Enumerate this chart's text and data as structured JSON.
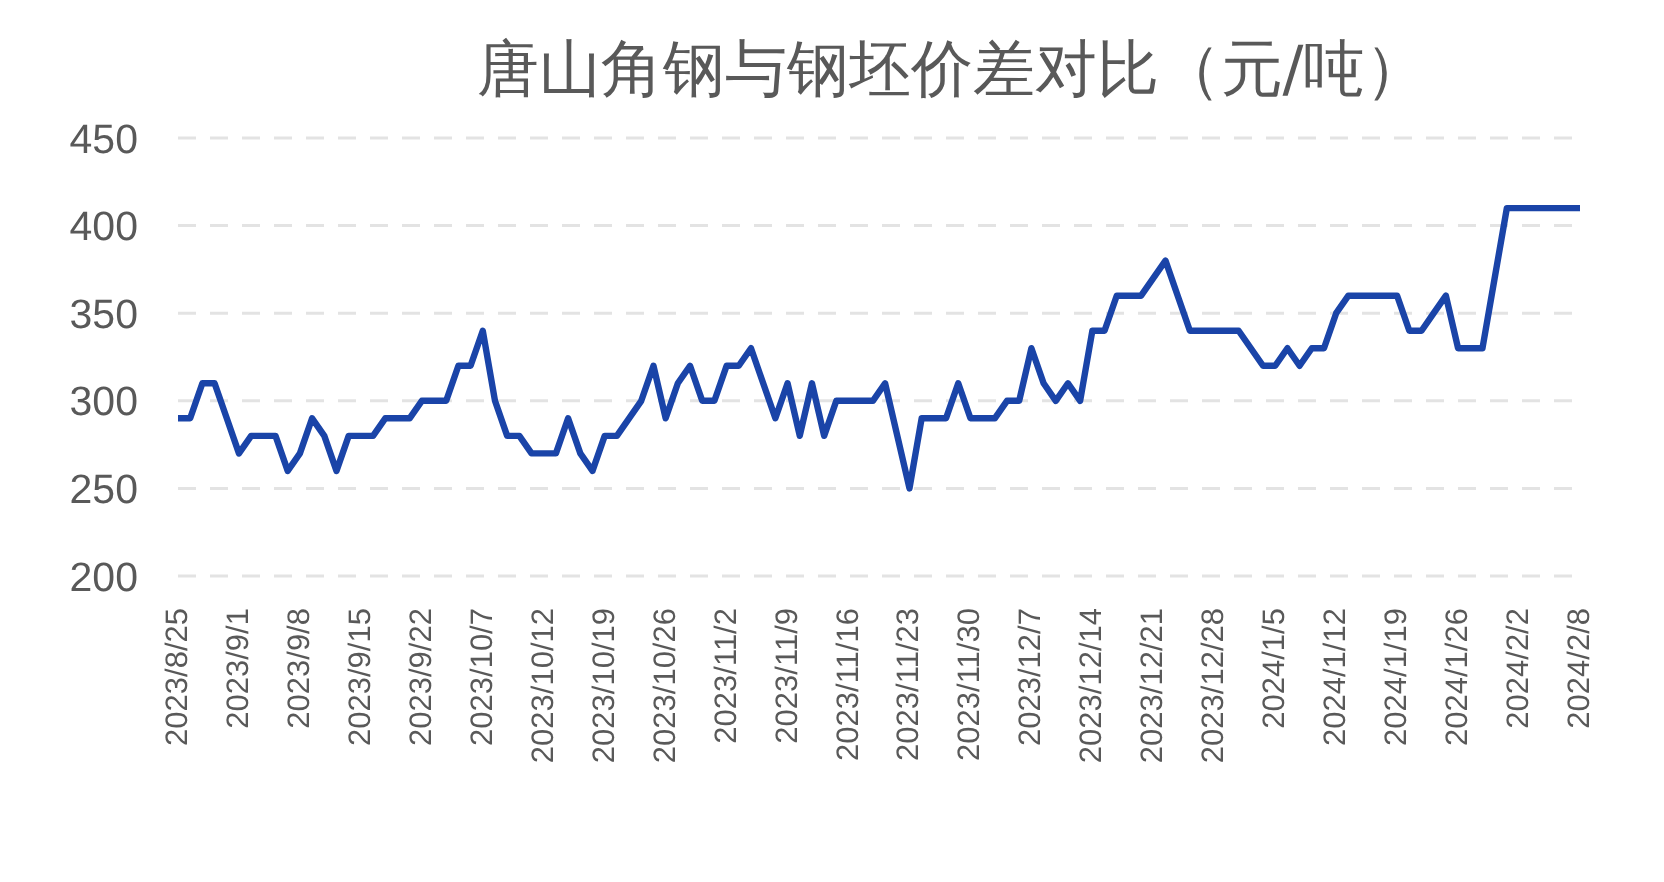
{
  "chart_data": {
    "type": "line",
    "title": "唐山角钢与钢坯价差对比（元/吨）",
    "categories": [
      "2023/8/25",
      null,
      null,
      null,
      null,
      "2023/9/1",
      null,
      null,
      null,
      null,
      "2023/9/8",
      null,
      null,
      null,
      null,
      "2023/9/15",
      null,
      null,
      null,
      null,
      "2023/9/22",
      null,
      null,
      null,
      null,
      "2023/10/7",
      null,
      null,
      null,
      null,
      "2023/10/12",
      null,
      null,
      null,
      null,
      "2023/10/19",
      null,
      null,
      null,
      null,
      "2023/10/26",
      null,
      null,
      null,
      null,
      "2023/11/2",
      null,
      null,
      null,
      null,
      "2023/11/9",
      null,
      null,
      null,
      null,
      "2023/11/16",
      null,
      null,
      null,
      null,
      "2023/11/23",
      null,
      null,
      null,
      null,
      "2023/11/30",
      null,
      null,
      null,
      null,
      "2023/12/7",
      null,
      null,
      null,
      null,
      "2023/12/14",
      null,
      null,
      null,
      null,
      "2023/12/21",
      null,
      null,
      null,
      null,
      "2023/12/28",
      null,
      null,
      null,
      null,
      "2024/1/5",
      null,
      null,
      null,
      null,
      "2024/1/12",
      null,
      null,
      null,
      null,
      "2024/1/19",
      null,
      null,
      null,
      null,
      "2024/1/26",
      null,
      null,
      null,
      null,
      "2024/2/2",
      null,
      null,
      null,
      null,
      "2024/2/8"
    ],
    "values": [
      290,
      290,
      310,
      310,
      290,
      270,
      280,
      280,
      280,
      260,
      270,
      290,
      280,
      260,
      280,
      280,
      280,
      290,
      290,
      290,
      300,
      300,
      300,
      320,
      320,
      340,
      300,
      280,
      280,
      270,
      270,
      270,
      290,
      270,
      260,
      280,
      280,
      290,
      300,
      320,
      290,
      310,
      320,
      300,
      300,
      320,
      320,
      330,
      310,
      290,
      310,
      280,
      310,
      280,
      300,
      300,
      300,
      300,
      310,
      280,
      250,
      290,
      290,
      290,
      310,
      290,
      290,
      290,
      300,
      300,
      330,
      310,
      300,
      310,
      300,
      340,
      340,
      360,
      360,
      360,
      370,
      380,
      360,
      340,
      340,
      340,
      340,
      340,
      330,
      320,
      320,
      330,
      320,
      330,
      330,
      350,
      360,
      360,
      360,
      360,
      360,
      340,
      340,
      350,
      360,
      330,
      330,
      330,
      370,
      410,
      410,
      410,
      410,
      410,
      410,
      410
    ],
    "color": "#1a44a8",
    "ylim": [
      200,
      450
    ],
    "yticks": [
      200,
      250,
      300,
      350,
      400,
      450
    ],
    "grid": "y",
    "line_style": "solid"
  }
}
